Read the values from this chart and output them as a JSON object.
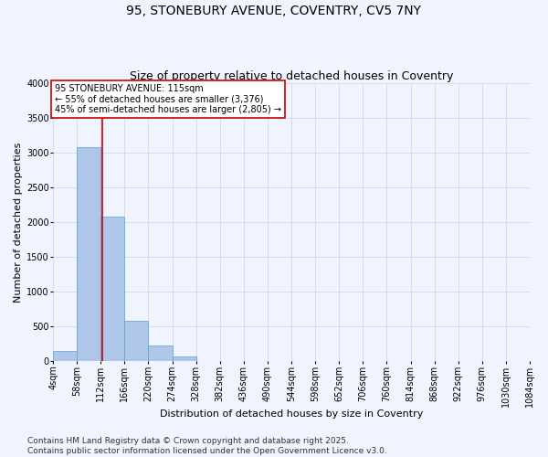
{
  "title": "95, STONEBURY AVENUE, COVENTRY, CV5 7NY",
  "subtitle": "Size of property relative to detached houses in Coventry",
  "xlabel": "Distribution of detached houses by size in Coventry",
  "ylabel": "Number of detached properties",
  "bar_color": "#aec6e8",
  "bar_edge_color": "#5a9fd4",
  "background_color": "#f0f4ff",
  "grid_color": "#c8d4e8",
  "property_size": 115,
  "property_line_color": "#cc0000",
  "annotation_text": "95 STONEBURY AVENUE: 115sqm\n← 55% of detached houses are smaller (3,376)\n45% of semi-detached houses are larger (2,805) →",
  "annotation_box_color": "#ffffff",
  "annotation_box_edge_color": "#cc0000",
  "bins_start": [
    4,
    58,
    112,
    166,
    220,
    274,
    328,
    382,
    436,
    490,
    544,
    598,
    652,
    706,
    760,
    814,
    868,
    922,
    976,
    1030,
    1084
  ],
  "bar_heights": [
    150,
    3080,
    2080,
    580,
    230,
    75,
    0,
    0,
    0,
    0,
    0,
    0,
    0,
    0,
    0,
    0,
    0,
    0,
    0,
    0
  ],
  "ylim": [
    0,
    4000
  ],
  "yticks": [
    0,
    500,
    1000,
    1500,
    2000,
    2500,
    3000,
    3500,
    4000
  ],
  "footnote": "Contains HM Land Registry data © Crown copyright and database right 2025.\nContains public sector information licensed under the Open Government Licence v3.0.",
  "title_fontsize": 10,
  "subtitle_fontsize": 9,
  "axis_label_fontsize": 8,
  "tick_fontsize": 7,
  "annotation_fontsize": 7,
  "footnote_fontsize": 6.5
}
